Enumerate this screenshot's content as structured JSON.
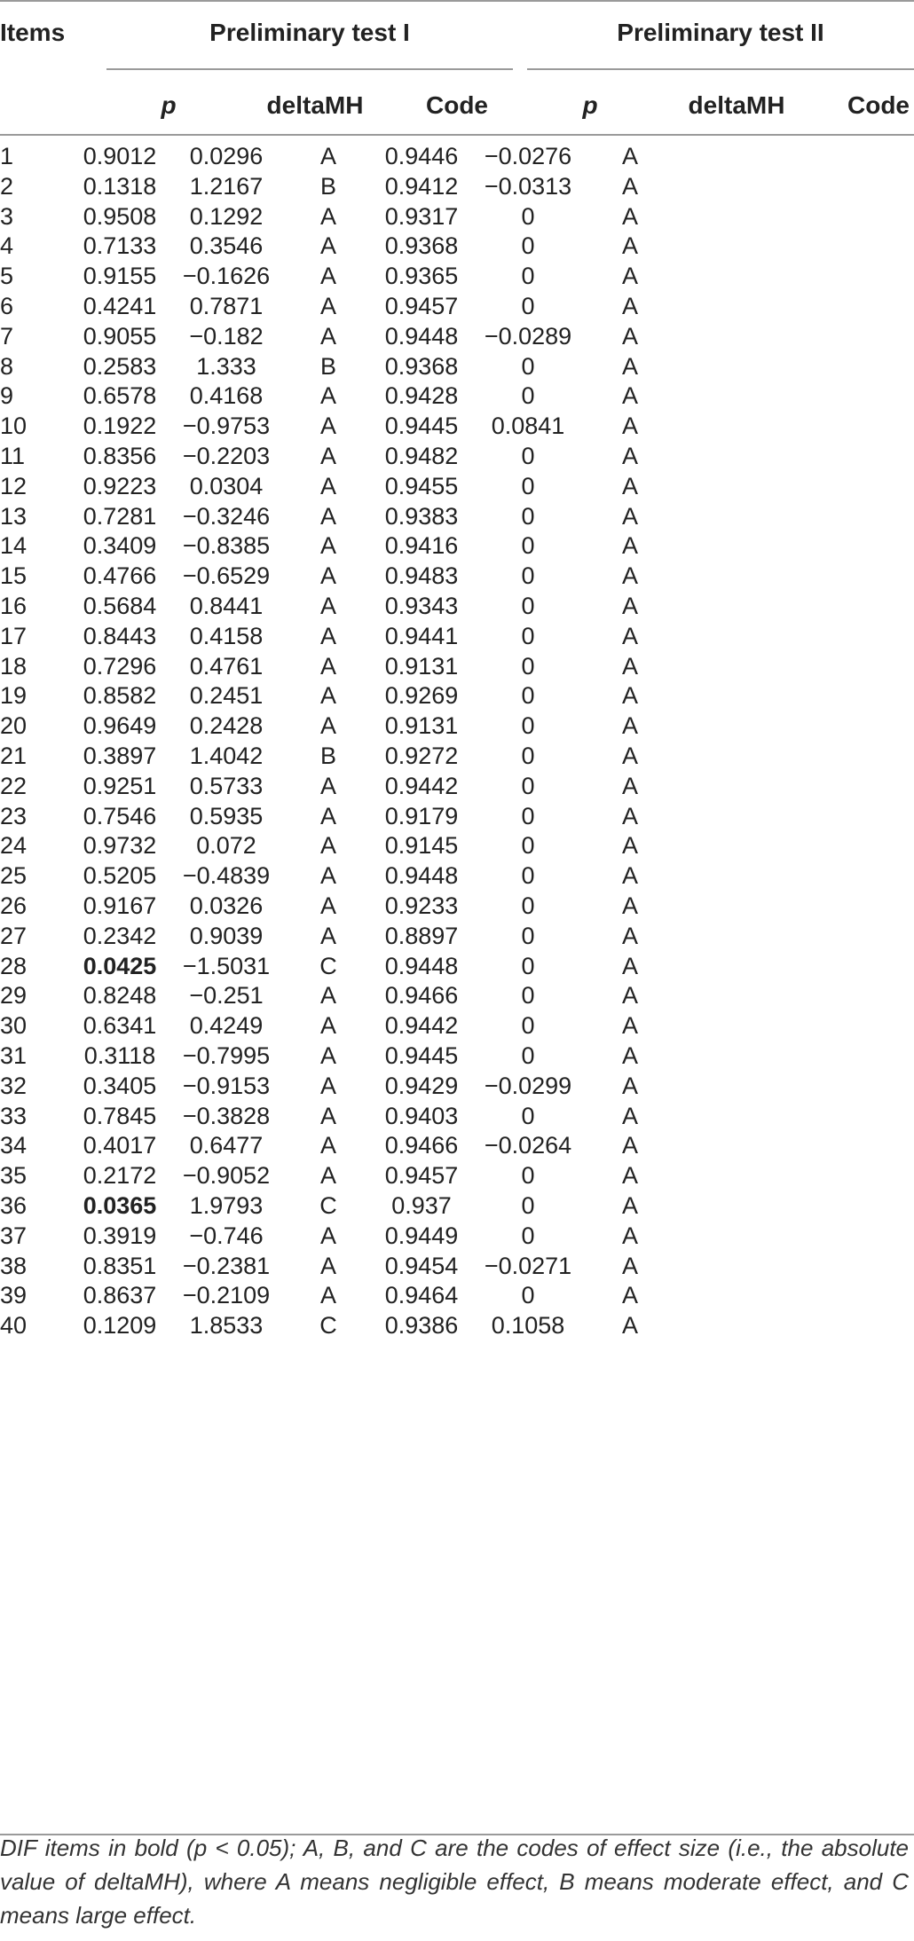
{
  "header": {
    "items": "Items",
    "group1": "Preliminary test I",
    "group2": "Preliminary test II",
    "cols": [
      "p",
      "deltaMH",
      "Code",
      "p",
      "deltaMH",
      "Code"
    ]
  },
  "rows": [
    {
      "item": "1",
      "p1": "0.9012",
      "d1": "0.0296",
      "c1": "A",
      "p2": "0.9446",
      "d2": "−0.0276",
      "c2": "A",
      "bold": false
    },
    {
      "item": "2",
      "p1": "0.1318",
      "d1": "1.2167",
      "c1": "B",
      "p2": "0.9412",
      "d2": "−0.0313",
      "c2": "A",
      "bold": false
    },
    {
      "item": "3",
      "p1": "0.9508",
      "d1": "0.1292",
      "c1": "A",
      "p2": "0.9317",
      "d2": "0",
      "c2": "A",
      "bold": false
    },
    {
      "item": "4",
      "p1": "0.7133",
      "d1": "0.3546",
      "c1": "A",
      "p2": "0.9368",
      "d2": "0",
      "c2": "A",
      "bold": false
    },
    {
      "item": "5",
      "p1": "0.9155",
      "d1": "−0.1626",
      "c1": "A",
      "p2": "0.9365",
      "d2": "0",
      "c2": "A",
      "bold": false
    },
    {
      "item": "6",
      "p1": "0.4241",
      "d1": "0.7871",
      "c1": "A",
      "p2": "0.9457",
      "d2": "0",
      "c2": "A",
      "bold": false
    },
    {
      "item": "7",
      "p1": "0.9055",
      "d1": "−0.182",
      "c1": "A",
      "p2": "0.9448",
      "d2": "−0.0289",
      "c2": "A",
      "bold": false
    },
    {
      "item": "8",
      "p1": "0.2583",
      "d1": "1.333",
      "c1": "B",
      "p2": "0.9368",
      "d2": "0",
      "c2": "A",
      "bold": false
    },
    {
      "item": "9",
      "p1": "0.6578",
      "d1": "0.4168",
      "c1": "A",
      "p2": "0.9428",
      "d2": "0",
      "c2": "A",
      "bold": false
    },
    {
      "item": "10",
      "p1": "0.1922",
      "d1": "−0.9753",
      "c1": "A",
      "p2": "0.9445",
      "d2": "0.0841",
      "c2": "A",
      "bold": false
    },
    {
      "item": "11",
      "p1": "0.8356",
      "d1": "−0.2203",
      "c1": "A",
      "p2": "0.9482",
      "d2": "0",
      "c2": "A",
      "bold": false
    },
    {
      "item": "12",
      "p1": "0.9223",
      "d1": "0.0304",
      "c1": "A",
      "p2": "0.9455",
      "d2": "0",
      "c2": "A",
      "bold": false
    },
    {
      "item": "13",
      "p1": "0.7281",
      "d1": "−0.3246",
      "c1": "A",
      "p2": "0.9383",
      "d2": "0",
      "c2": "A",
      "bold": false
    },
    {
      "item": "14",
      "p1": "0.3409",
      "d1": "−0.8385",
      "c1": "A",
      "p2": "0.9416",
      "d2": "0",
      "c2": "A",
      "bold": false
    },
    {
      "item": "15",
      "p1": "0.4766",
      "d1": "−0.6529",
      "c1": "A",
      "p2": "0.9483",
      "d2": "0",
      "c2": "A",
      "bold": false
    },
    {
      "item": "16",
      "p1": "0.5684",
      "d1": "0.8441",
      "c1": "A",
      "p2": "0.9343",
      "d2": "0",
      "c2": "A",
      "bold": false
    },
    {
      "item": "17",
      "p1": "0.8443",
      "d1": "0.4158",
      "c1": "A",
      "p2": "0.9441",
      "d2": "0",
      "c2": "A",
      "bold": false
    },
    {
      "item": "18",
      "p1": "0.7296",
      "d1": "0.4761",
      "c1": "A",
      "p2": "0.9131",
      "d2": "0",
      "c2": "A",
      "bold": false
    },
    {
      "item": "19",
      "p1": "0.8582",
      "d1": "0.2451",
      "c1": "A",
      "p2": "0.9269",
      "d2": "0",
      "c2": "A",
      "bold": false
    },
    {
      "item": "20",
      "p1": "0.9649",
      "d1": "0.2428",
      "c1": "A",
      "p2": "0.9131",
      "d2": "0",
      "c2": "A",
      "bold": false
    },
    {
      "item": "21",
      "p1": "0.3897",
      "d1": "1.4042",
      "c1": "B",
      "p2": "0.9272",
      "d2": "0",
      "c2": "A",
      "bold": false
    },
    {
      "item": "22",
      "p1": "0.9251",
      "d1": "0.5733",
      "c1": "A",
      "p2": "0.9442",
      "d2": "0",
      "c2": "A",
      "bold": false
    },
    {
      "item": "23",
      "p1": "0.7546",
      "d1": "0.5935",
      "c1": "A",
      "p2": "0.9179",
      "d2": "0",
      "c2": "A",
      "bold": false
    },
    {
      "item": "24",
      "p1": "0.9732",
      "d1": "0.072",
      "c1": "A",
      "p2": "0.9145",
      "d2": "0",
      "c2": "A",
      "bold": false
    },
    {
      "item": "25",
      "p1": "0.5205",
      "d1": "−0.4839",
      "c1": "A",
      "p2": "0.9448",
      "d2": "0",
      "c2": "A",
      "bold": false
    },
    {
      "item": "26",
      "p1": "0.9167",
      "d1": "0.0326",
      "c1": "A",
      "p2": "0.9233",
      "d2": "0",
      "c2": "A",
      "bold": false
    },
    {
      "item": "27",
      "p1": "0.2342",
      "d1": "0.9039",
      "c1": "A",
      "p2": "0.8897",
      "d2": "0",
      "c2": "A",
      "bold": false
    },
    {
      "item": "28",
      "p1": "0.0425",
      "d1": "−1.5031",
      "c1": "C",
      "p2": "0.9448",
      "d2": "0",
      "c2": "A",
      "bold": true
    },
    {
      "item": "29",
      "p1": "0.8248",
      "d1": "−0.251",
      "c1": "A",
      "p2": "0.9466",
      "d2": "0",
      "c2": "A",
      "bold": false
    },
    {
      "item": "30",
      "p1": "0.6341",
      "d1": "0.4249",
      "c1": "A",
      "p2": "0.9442",
      "d2": "0",
      "c2": "A",
      "bold": false
    },
    {
      "item": "31",
      "p1": "0.3118",
      "d1": "−0.7995",
      "c1": "A",
      "p2": "0.9445",
      "d2": "0",
      "c2": "A",
      "bold": false
    },
    {
      "item": "32",
      "p1": "0.3405",
      "d1": "−0.9153",
      "c1": "A",
      "p2": "0.9429",
      "d2": "−0.0299",
      "c2": "A",
      "bold": false
    },
    {
      "item": "33",
      "p1": "0.7845",
      "d1": "−0.3828",
      "c1": "A",
      "p2": "0.9403",
      "d2": "0",
      "c2": "A",
      "bold": false
    },
    {
      "item": "34",
      "p1": "0.4017",
      "d1": "0.6477",
      "c1": "A",
      "p2": "0.9466",
      "d2": "−0.0264",
      "c2": "A",
      "bold": false
    },
    {
      "item": "35",
      "p1": "0.2172",
      "d1": "−0.9052",
      "c1": "A",
      "p2": "0.9457",
      "d2": "0",
      "c2": "A",
      "bold": false
    },
    {
      "item": "36",
      "p1": "0.0365",
      "d1": "1.9793",
      "c1": "C",
      "p2": "0.937",
      "d2": "0",
      "c2": "A",
      "bold": true
    },
    {
      "item": "37",
      "p1": "0.3919",
      "d1": "−0.746",
      "c1": "A",
      "p2": "0.9449",
      "d2": "0",
      "c2": "A",
      "bold": false
    },
    {
      "item": "38",
      "p1": "0.8351",
      "d1": "−0.2381",
      "c1": "A",
      "p2": "0.9454",
      "d2": "−0.0271",
      "c2": "A",
      "bold": false
    },
    {
      "item": "39",
      "p1": "0.8637",
      "d1": "−0.2109",
      "c1": "A",
      "p2": "0.9464",
      "d2": "0",
      "c2": "A",
      "bold": false
    },
    {
      "item": "40",
      "p1": "0.1209",
      "d1": "1.8533",
      "c1": "C",
      "p2": "0.9386",
      "d2": "0.1058",
      "c2": "A",
      "bold": false
    }
  ],
  "footnote": "DIF items in bold (p < 0.05); A, B, and C are the codes of effect size (i.e., the absolute value of deltaMH), where A means negligible effect, B means moderate effect, and C means large effect."
}
